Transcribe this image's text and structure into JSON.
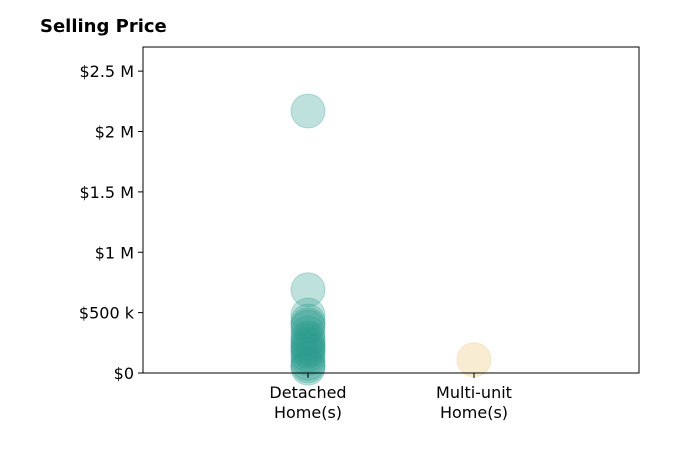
{
  "chart_data": {
    "type": "scatter",
    "title": "Selling Price",
    "xlabel": "",
    "ylabel": "",
    "categories": [
      "Detached\nHome(s)",
      "Multi-unit\nHome(s)"
    ],
    "ylim": [
      0,
      2700000
    ],
    "yticks": [
      {
        "value": 0,
        "label": "$0"
      },
      {
        "value": 500000,
        "label": "$500 k"
      },
      {
        "value": 1000000,
        "label": "$1 M"
      },
      {
        "value": 1500000,
        "label": "$1.5 M"
      },
      {
        "value": 2000000,
        "label": "$2 M"
      },
      {
        "value": 2500000,
        "label": "$2.5 M"
      }
    ],
    "series": [
      {
        "category": "Detached\nHome(s)",
        "color": "#2a9d8f",
        "values": [
          2170000,
          690000,
          480000,
          430000,
          400000,
          380000,
          330000,
          290000,
          270000,
          240000,
          220000,
          200000,
          180000,
          150000,
          120000,
          80000,
          60000,
          40000
        ]
      },
      {
        "category": "Multi-unit\nHome(s)",
        "color": "#e9c46a",
        "values": [
          110000
        ]
      }
    ],
    "marker_opacity": 0.3,
    "grid": false,
    "legend": "none"
  }
}
